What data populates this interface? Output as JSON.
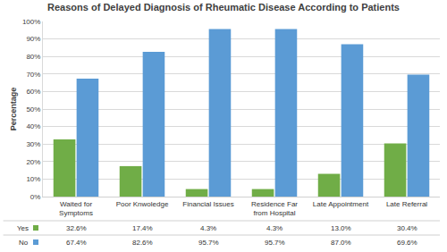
{
  "chart_data": {
    "type": "bar",
    "title": "Reasons of Delayed Diagnosis of Rheumatic Disease According to Patients",
    "y_label": "Percentage",
    "categories": [
      "Waited for Symptoms",
      "Poor Knwoledge",
      "Financial Issues",
      "Residence Far from Hospital",
      "Late Appointment",
      "Late Referral"
    ],
    "series": [
      {
        "name": "Yes",
        "color": "#70ad47",
        "values": [
          32.6,
          17.4,
          4.3,
          4.3,
          13.0,
          30.4
        ],
        "value_labels": [
          "32.6%",
          "17.4%",
          "4.3%",
          "4.3%",
          "13.0%",
          "30.4%"
        ]
      },
      {
        "name": "No",
        "color": "#5b9bd5",
        "values": [
          67.4,
          82.6,
          95.7,
          95.7,
          87.0,
          69.6
        ],
        "value_labels": [
          "67.4%",
          "82.6%",
          "95.7%",
          "95.7%",
          "87.0%",
          "69.6%"
        ]
      }
    ],
    "ylim": [
      0,
      100
    ],
    "yticks": [
      {
        "value": 0,
        "label": "0%"
      },
      {
        "value": 10,
        "label": "10%"
      },
      {
        "value": 20,
        "label": "20%"
      },
      {
        "value": 30,
        "label": "30%"
      },
      {
        "value": 40,
        "label": "40%"
      },
      {
        "value": 50,
        "label": "50%"
      },
      {
        "value": 60,
        "label": "60%"
      },
      {
        "value": 70,
        "label": "70%"
      },
      {
        "value": 80,
        "label": "80%"
      },
      {
        "value": 90,
        "label": "90%"
      },
      {
        "value": 100,
        "label": "100%"
      }
    ],
    "grid": true
  }
}
